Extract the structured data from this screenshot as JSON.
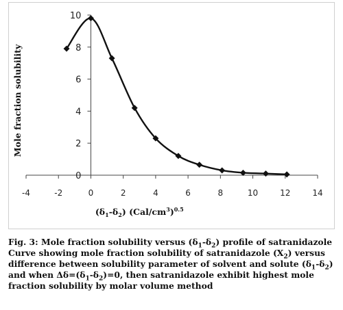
{
  "chart_data": {
    "type": "line",
    "x": [
      -1.5,
      0,
      1.3,
      2.7,
      4.0,
      5.4,
      6.7,
      8.1,
      9.4,
      10.8,
      12.1
    ],
    "series": [
      {
        "values": [
          7.9,
          9.8,
          7.3,
          4.2,
          2.3,
          1.2,
          0.65,
          0.3,
          0.15,
          0.1,
          0.05
        ]
      }
    ],
    "xlabel": "(δ1-δ2) (Cal/cm3)0.5",
    "ylabel": "Mole fraction solubility",
    "xlim": [
      -4,
      14
    ],
    "ylim": [
      0,
      10
    ],
    "xticks": [
      "-4",
      "-2",
      "0",
      "2",
      "4",
      "6",
      "8",
      "10",
      "12",
      "14"
    ],
    "yticks": [
      "0",
      "2",
      "4",
      "6",
      "8",
      "10"
    ],
    "grid": false,
    "line_color": "#111111",
    "marker": "diamond"
  },
  "caption": {
    "fig": "Fig. 3:",
    "seg1": " Mole fraction solubility versus (δ",
    "sub1": "1",
    "seg2": "-δ",
    "sub2": "2",
    "seg3": ") profile of satranidazole Curve showing mole fraction solubility of satranidazole (X",
    "sub3": "2",
    "seg4": ") versus difference between solubility parameter of solvent and solute (δ",
    "sub4": "1",
    "seg5": "-δ",
    "sub5": "2",
    "seg6": ") and when Δδ=(δ",
    "sub6": "1",
    "seg7": "-δ",
    "sub7": "2",
    "seg8": ")=0, then satranidazole exhibit highest mole fraction solubility by molar volume method"
  },
  "xlabel_parts": {
    "open": "(δ",
    "s1": "1",
    "mid": "-δ",
    "s2": "2",
    "unit": ") (Cal/cm",
    "cube": "3",
    "close": ")",
    "exp": "0.5"
  }
}
